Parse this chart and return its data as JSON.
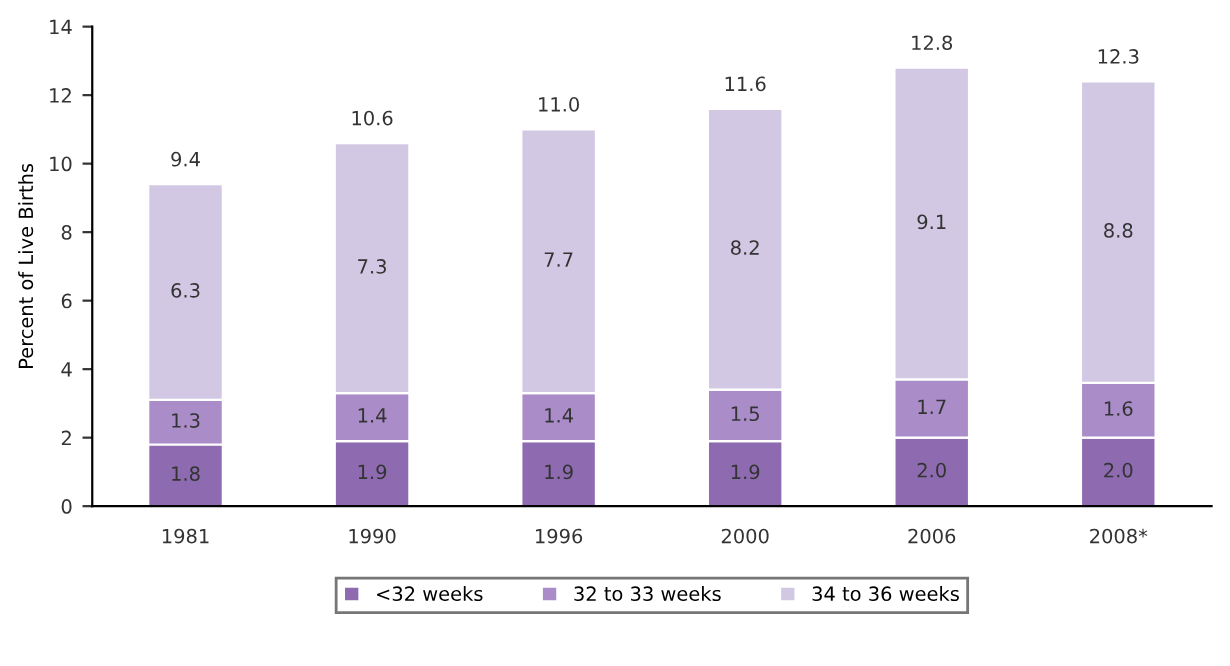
{
  "chart_data": {
    "type": "bar",
    "stacked": true,
    "ylabel": "Percent of Live Births",
    "categories": [
      "1981",
      "1990",
      "1996",
      "2000",
      "2006",
      "2008*"
    ],
    "series": [
      {
        "name": "<32 weeks",
        "color": "#8e6bb0",
        "values": [
          1.8,
          1.9,
          1.9,
          1.9,
          2.0,
          2.0
        ],
        "value_labels": [
          "1.8",
          "1.9",
          "1.9",
          "1.9",
          "2.0",
          "2.0"
        ]
      },
      {
        "name": "32 to 33 weeks",
        "color": "#a98cc8",
        "values": [
          1.3,
          1.4,
          1.4,
          1.5,
          1.7,
          1.6
        ],
        "value_labels": [
          "1.3",
          "1.4",
          "1.4",
          "1.5",
          "1.7",
          "1.6"
        ]
      },
      {
        "name": "34 to 36 weeks",
        "color": "#d3c8e4",
        "values": [
          6.3,
          7.3,
          7.7,
          8.2,
          9.1,
          8.8
        ],
        "value_labels": [
          "6.3",
          "7.3",
          "7.7",
          "8.2",
          "9.1",
          "8.8"
        ]
      }
    ],
    "totals": [
      "9.4",
      "10.6",
      "11.0",
      "11.6",
      "12.8",
      "12.3"
    ],
    "ylim": [
      0,
      14
    ],
    "yticks": [
      0,
      2,
      4,
      6,
      8,
      10,
      12,
      14
    ],
    "grid": false,
    "legend": "bottom"
  }
}
